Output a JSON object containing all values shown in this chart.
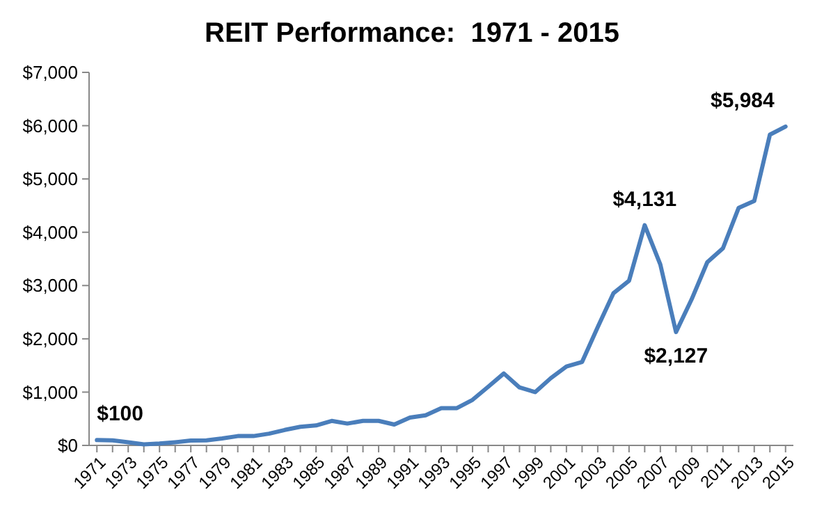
{
  "chart_data": {
    "type": "line",
    "title": "REIT Performance:  1971 - 2015",
    "x": [
      1971,
      1972,
      1973,
      1974,
      1975,
      1976,
      1977,
      1978,
      1979,
      1980,
      1981,
      1982,
      1983,
      1984,
      1985,
      1986,
      1987,
      1988,
      1989,
      1990,
      1991,
      1992,
      1993,
      1994,
      1995,
      1996,
      1997,
      1998,
      1999,
      2000,
      2001,
      2002,
      2003,
      2004,
      2005,
      2006,
      2007,
      2008,
      2009,
      2010,
      2011,
      2012,
      2013,
      2014,
      2015
    ],
    "series": [
      {
        "color": "#4a7ebb",
        "values": [
          100,
          95,
          60,
          20,
          35,
          60,
          90,
          95,
          130,
          175,
          175,
          220,
          290,
          350,
          375,
          460,
          410,
          460,
          460,
          392,
          522,
          566,
          700,
          700,
          855,
          1100,
          1350,
          1088,
          1000,
          1262,
          1480,
          1567,
          2219,
          2855,
          3090,
          4131,
          3394,
          2127,
          2742,
          3438,
          3699,
          4456,
          4586,
          5831,
          5984
        ]
      }
    ],
    "xlim": [
      1970.5,
      2015.5
    ],
    "xticks": [
      {
        "value": 1971,
        "label": "1971"
      },
      {
        "value": 1972,
        "label": null
      },
      {
        "value": 1973,
        "label": "1973"
      },
      {
        "value": 1974,
        "label": null
      },
      {
        "value": 1975,
        "label": "1975"
      },
      {
        "value": 1976,
        "label": null
      },
      {
        "value": 1977,
        "label": "1977"
      },
      {
        "value": 1978,
        "label": null
      },
      {
        "value": 1979,
        "label": "1979"
      },
      {
        "value": 1980,
        "label": null
      },
      {
        "value": 1981,
        "label": "1981"
      },
      {
        "value": 1982,
        "label": null
      },
      {
        "value": 1983,
        "label": "1983"
      },
      {
        "value": 1984,
        "label": null
      },
      {
        "value": 1985,
        "label": "1985"
      },
      {
        "value": 1986,
        "label": null
      },
      {
        "value": 1987,
        "label": "1987"
      },
      {
        "value": 1988,
        "label": null
      },
      {
        "value": 1989,
        "label": "1989"
      },
      {
        "value": 1990,
        "label": null
      },
      {
        "value": 1991,
        "label": "1991"
      },
      {
        "value": 1992,
        "label": null
      },
      {
        "value": 1993,
        "label": "1993"
      },
      {
        "value": 1994,
        "label": null
      },
      {
        "value": 1995,
        "label": "1995"
      },
      {
        "value": 1996,
        "label": null
      },
      {
        "value": 1997,
        "label": "1997"
      },
      {
        "value": 1998,
        "label": null
      },
      {
        "value": 1999,
        "label": "1999"
      },
      {
        "value": 2000,
        "label": null
      },
      {
        "value": 2001,
        "label": "2001"
      },
      {
        "value": 2002,
        "label": null
      },
      {
        "value": 2003,
        "label": "2003"
      },
      {
        "value": 2004,
        "label": null
      },
      {
        "value": 2005,
        "label": "2005"
      },
      {
        "value": 2006,
        "label": null
      },
      {
        "value": 2007,
        "label": "2007"
      },
      {
        "value": 2008,
        "label": null
      },
      {
        "value": 2009,
        "label": "2009"
      },
      {
        "value": 2010,
        "label": null
      },
      {
        "value": 2011,
        "label": "2011"
      },
      {
        "value": 2012,
        "label": null
      },
      {
        "value": 2013,
        "label": "2013"
      },
      {
        "value": 2014,
        "label": null
      },
      {
        "value": 2015,
        "label": "2015"
      }
    ],
    "ylim": [
      0,
      7000
    ],
    "yticks": [
      {
        "value": 0,
        "label": "$0"
      },
      {
        "value": 1000,
        "label": "$1,000"
      },
      {
        "value": 2000,
        "label": "$2,000"
      },
      {
        "value": 3000,
        "label": "$3,000"
      },
      {
        "value": 4000,
        "label": "$4,000"
      },
      {
        "value": 5000,
        "label": "$5,000"
      },
      {
        "value": 6000,
        "label": "$6,000"
      },
      {
        "value": 7000,
        "label": "$7,000"
      }
    ],
    "annotations": [
      {
        "text": "$100",
        "x": 1971,
        "y": 100
      },
      {
        "text": "$4,131",
        "x": 2006,
        "y": 4131
      },
      {
        "text": "$2,127",
        "x": 2008,
        "y": 2127
      },
      {
        "text": "$5,984",
        "x": 2015,
        "y": 5984
      }
    ]
  }
}
